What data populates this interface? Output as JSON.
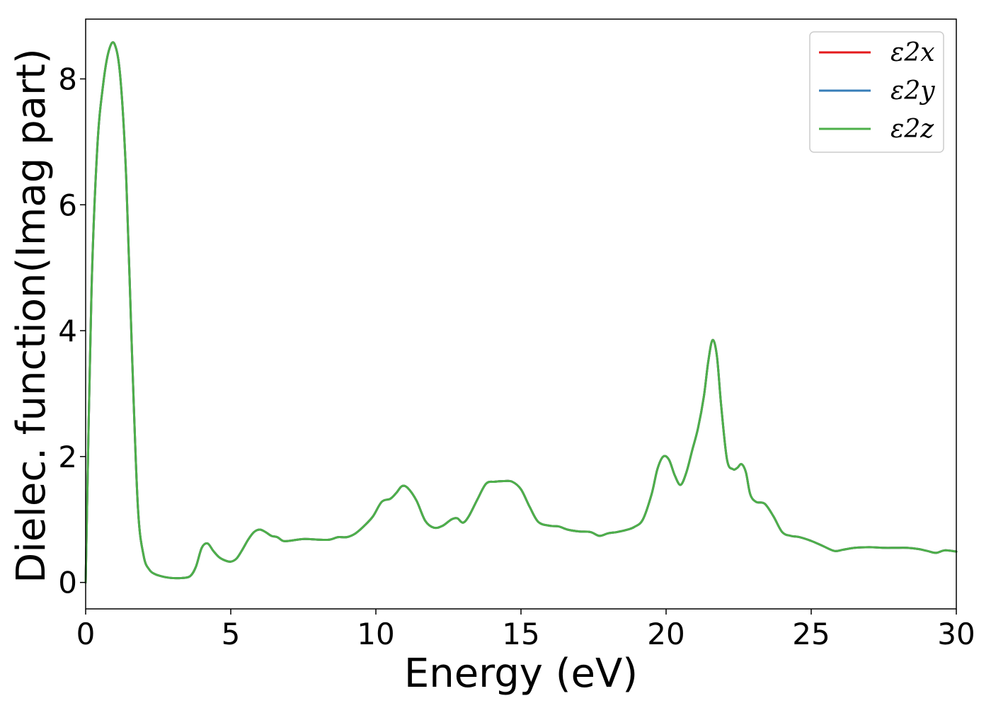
{
  "chart_data": {
    "type": "line",
    "title": "",
    "xlabel": "Energy (eV)",
    "ylabel": "Dielec. function(Imag part)",
    "xlim": [
      0,
      30
    ],
    "ylim": [
      -0.42,
      8.95
    ],
    "xticks": [
      0,
      5,
      10,
      15,
      20,
      25,
      30
    ],
    "yticks": [
      0,
      2,
      4,
      6,
      8
    ],
    "grid": false,
    "legend_position": "top-right",
    "series": [
      {
        "name": "ε2x",
        "color": "#e41a1c"
      },
      {
        "name": "ε2y",
        "color": "#377eb8"
      },
      {
        "name": "ε2z",
        "color": "#4daf4a"
      }
    ],
    "x": [
      0,
      0.2,
      0.4,
      0.6,
      0.8,
      1.0,
      1.2,
      1.4,
      1.6,
      1.8,
      2.0,
      2.2,
      2.4,
      2.6,
      2.8,
      3.0,
      3.3,
      3.6,
      3.8,
      4.0,
      4.2,
      4.4,
      4.6,
      4.8,
      5.0,
      5.2,
      5.4,
      5.6,
      5.8,
      6.0,
      6.2,
      6.4,
      6.6,
      6.8,
      7.0,
      7.5,
      8.0,
      8.4,
      8.7,
      9.0,
      9.3,
      9.6,
      9.9,
      10.2,
      10.5,
      10.7,
      10.9,
      11.1,
      11.4,
      11.7,
      12.0,
      12.3,
      12.6,
      12.8,
      13.0,
      13.2,
      13.5,
      13.8,
      14.1,
      14.4,
      14.7,
      15.0,
      15.3,
      15.6,
      16.0,
      16.3,
      16.6,
      17.0,
      17.4,
      17.7,
      18.0,
      18.3,
      18.6,
      18.9,
      19.2,
      19.5,
      19.7,
      19.9,
      20.1,
      20.3,
      20.5,
      20.7,
      20.9,
      21.1,
      21.3,
      21.45,
      21.6,
      21.75,
      21.9,
      22.1,
      22.3,
      22.45,
      22.6,
      22.75,
      22.9,
      23.1,
      23.4,
      23.7,
      24.0,
      24.3,
      24.6,
      25.0,
      25.4,
      25.8,
      26.1,
      26.5,
      27.0,
      27.5,
      27.9,
      28.3,
      28.7,
      29.0,
      29.3,
      29.6,
      30.0
    ],
    "values": [
      0.0,
      4.6,
      6.9,
      7.9,
      8.45,
      8.55,
      8.0,
      6.4,
      3.6,
      1.2,
      0.42,
      0.2,
      0.13,
      0.1,
      0.08,
      0.07,
      0.07,
      0.1,
      0.25,
      0.55,
      0.62,
      0.5,
      0.4,
      0.35,
      0.33,
      0.38,
      0.52,
      0.68,
      0.8,
      0.84,
      0.8,
      0.74,
      0.72,
      0.66,
      0.66,
      0.69,
      0.68,
      0.68,
      0.72,
      0.72,
      0.78,
      0.9,
      1.05,
      1.28,
      1.33,
      1.42,
      1.53,
      1.5,
      1.3,
      0.98,
      0.87,
      0.9,
      1.0,
      1.02,
      0.95,
      1.05,
      1.32,
      1.57,
      1.6,
      1.61,
      1.6,
      1.48,
      1.2,
      0.96,
      0.9,
      0.89,
      0.84,
      0.81,
      0.8,
      0.74,
      0.78,
      0.8,
      0.83,
      0.88,
      1.0,
      1.4,
      1.8,
      2.0,
      1.95,
      1.7,
      1.55,
      1.75,
      2.1,
      2.45,
      2.95,
      3.5,
      3.85,
      3.6,
      2.8,
      1.95,
      1.8,
      1.82,
      1.88,
      1.75,
      1.4,
      1.28,
      1.25,
      1.05,
      0.8,
      0.74,
      0.72,
      0.66,
      0.58,
      0.5,
      0.52,
      0.55,
      0.56,
      0.55,
      0.55,
      0.55,
      0.53,
      0.5,
      0.47,
      0.51,
      0.49
    ]
  }
}
